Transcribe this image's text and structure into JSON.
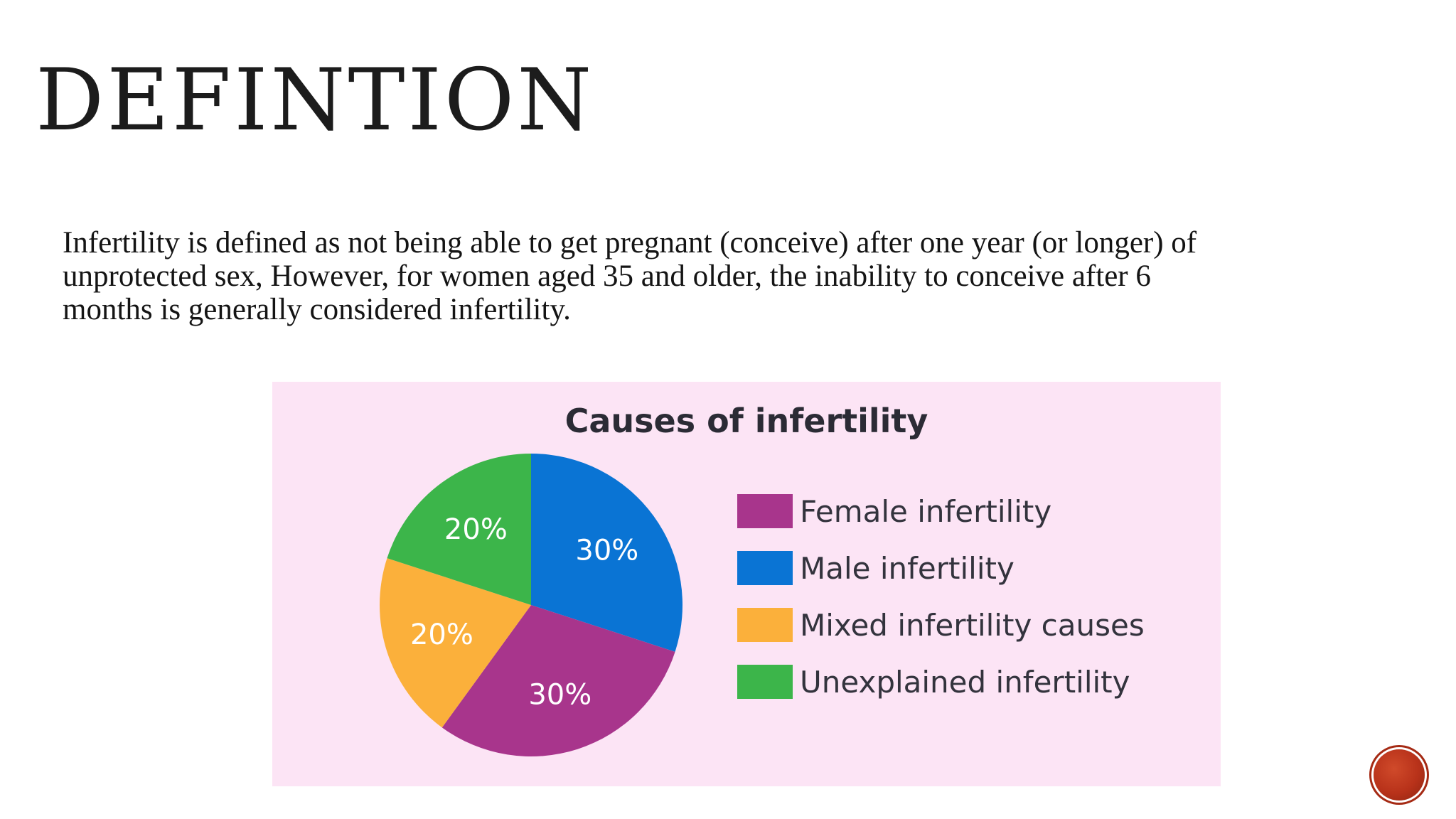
{
  "slide": {
    "title": "DEFINTION",
    "body": "Infertility is defined as not being able to get pregnant (conceive) after one year (or longer) of unprotected sex, However, for women aged 35 and older, the inability to conceive after 6 months is generally considered infertility."
  },
  "chart_data": {
    "type": "pie",
    "title": "Causes of infertility",
    "legend_position": "right",
    "slices": [
      {
        "label": "Female infertility",
        "value": 30,
        "display": "30%",
        "color": "#a8358c"
      },
      {
        "label": "Male infertility",
        "value": 30,
        "display": "30%",
        "color": "#0a74d4"
      },
      {
        "label": "Mixed infertility causes",
        "value": 20,
        "display": "20%",
        "color": "#fbb03b"
      },
      {
        "label": "Unexplained infertility",
        "value": 20,
        "display": "20%",
        "color": "#3cb54a"
      }
    ],
    "draw_order": [
      "Male infertility",
      "Female infertility",
      "Mixed infertility causes",
      "Unexplained infertility"
    ]
  },
  "colors": {
    "panel_background": "#fce4f5",
    "nav_button": "#b8321a"
  },
  "icons": {
    "nav": "next-slide-circle-icon"
  }
}
